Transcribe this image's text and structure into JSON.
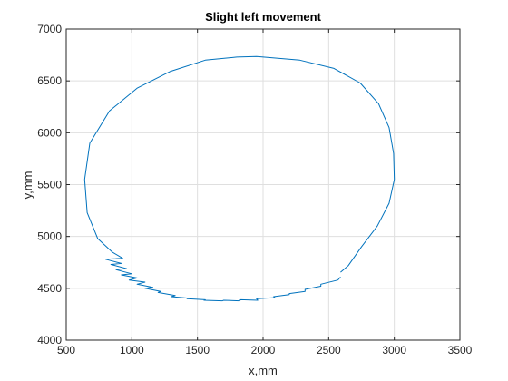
{
  "chart_data": {
    "type": "line",
    "title": "Slight left movement",
    "xlabel": "x,mm",
    "ylabel": "y,mm",
    "xlim": [
      500,
      3500
    ],
    "ylim": [
      4000,
      7000
    ],
    "xticks": [
      500,
      1000,
      1500,
      2000,
      2500,
      3000,
      3500
    ],
    "yticks": [
      4000,
      4500,
      5000,
      5500,
      6000,
      6500,
      7000
    ],
    "grid": true,
    "line_color": "#0072BD",
    "series": [
      {
        "x": [
          2590,
          2650,
          2750,
          2870,
          2960,
          3000,
          2995,
          2960,
          2880,
          2740,
          2540,
          2280,
          1950,
          1800,
          1560,
          1290,
          1040,
          830,
          680,
          640,
          660,
          740,
          850,
          930,
          800,
          920,
          840,
          960,
          880,
          1000,
          920,
          1040,
          980,
          1100,
          1040,
          1160,
          1100,
          1220,
          1200,
          1330,
          1300,
          1440,
          1420,
          1560,
          1550,
          1690,
          1700,
          1820,
          1830,
          1960,
          1950,
          2090,
          2080,
          2200,
          2200,
          2320,
          2320,
          2440,
          2440,
          2570,
          2590
        ],
        "y": [
          4655,
          4720,
          4900,
          5100,
          5320,
          5550,
          5800,
          6050,
          6280,
          6480,
          6620,
          6700,
          6735,
          6730,
          6700,
          6590,
          6430,
          6210,
          5900,
          5550,
          5230,
          4980,
          4850,
          4790,
          4780,
          4740,
          4730,
          4690,
          4680,
          4640,
          4630,
          4600,
          4580,
          4560,
          4540,
          4510,
          4500,
          4470,
          4460,
          4430,
          4420,
          4405,
          4400,
          4390,
          4385,
          4380,
          4385,
          4380,
          4390,
          4385,
          4400,
          4410,
          4420,
          4440,
          4450,
          4470,
          4490,
          4520,
          4540,
          4580,
          4610
        ]
      }
    ]
  }
}
